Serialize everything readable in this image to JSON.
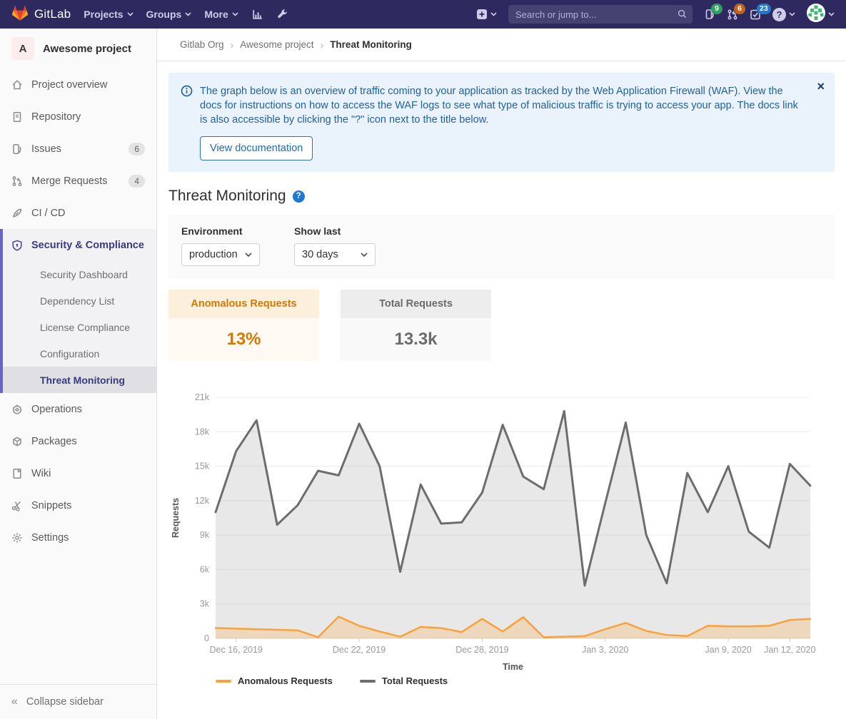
{
  "navbar": {
    "brand": "GitLab",
    "menus": [
      {
        "label": "Projects"
      },
      {
        "label": "Groups"
      },
      {
        "label": "More"
      }
    ],
    "search_placeholder": "Search or jump to...",
    "badges": {
      "issues": "9",
      "merge_requests": "6",
      "todos": "23"
    }
  },
  "icons": {
    "help": "?",
    "close": "×",
    "collapse": "«"
  },
  "sidebar": {
    "project_initial": "A",
    "project_name": "Awesome project",
    "items": [
      {
        "label": "Project overview"
      },
      {
        "label": "Repository"
      },
      {
        "label": "Issues",
        "badge": "6"
      },
      {
        "label": "Merge Requests",
        "badge": "4"
      },
      {
        "label": "CI / CD"
      },
      {
        "label": "Security & Compliance"
      },
      {
        "label": "Operations"
      },
      {
        "label": "Packages"
      },
      {
        "label": "Wiki"
      },
      {
        "label": "Snippets"
      },
      {
        "label": "Settings"
      }
    ],
    "security_subitems": [
      {
        "label": "Security Dashboard"
      },
      {
        "label": "Dependency List"
      },
      {
        "label": "License Compliance"
      },
      {
        "label": "Configuration"
      },
      {
        "label": "Threat Monitoring",
        "active": true
      }
    ],
    "collapse_label": "Collapse sidebar"
  },
  "breadcrumb": {
    "items": [
      "Gitlab Org",
      "Awesome project",
      "Threat Monitoring"
    ]
  },
  "alert": {
    "text": "The graph below is an overview of traffic coming to your application as tracked by the Web Application Firewall (WAF). View the docs for instructions on how to access the WAF logs to see what type of malicious traffic is trying to access your app. The docs link is also accessible by clicking the \"?\" icon next to the title below.",
    "button_label": "View documentation"
  },
  "page": {
    "title": "Threat Monitoring"
  },
  "filters": {
    "environment_label": "Environment",
    "environment_value": "production",
    "show_last_label": "Show last",
    "show_last_value": "30 days"
  },
  "stats": {
    "cards": [
      {
        "label": "Anomalous Requests",
        "value": "13%"
      },
      {
        "label": "Total Requests",
        "value": "13.3k"
      }
    ]
  },
  "colors": {
    "navbar_bg": "#2e2a60",
    "sidebar_accent": "#6666c4",
    "link_blue": "#1f78d1",
    "anomalous_orange": "#f9a23a",
    "total_gray": "#6d6d6d"
  },
  "chart_data": {
    "type": "area",
    "title": "",
    "xlabel": "Time",
    "ylabel": "Requests",
    "ylim": [
      0,
      21000
    ],
    "y_tick_step": 3000,
    "y_ticks": [
      "0",
      "3k",
      "6k",
      "9k",
      "12k",
      "15k",
      "18k",
      "21k"
    ],
    "grid": true,
    "legend_position": "bottom-left",
    "x": [
      "Dec 15, 2019",
      "Dec 16, 2019",
      "Dec 17, 2019",
      "Dec 18, 2019",
      "Dec 19, 2019",
      "Dec 20, 2019",
      "Dec 21, 2019",
      "Dec 22, 2019",
      "Dec 23, 2019",
      "Dec 24, 2019",
      "Dec 25, 2019",
      "Dec 26, 2019",
      "Dec 27, 2019",
      "Dec 28, 2019",
      "Dec 29, 2019",
      "Dec 30, 2019",
      "Dec 31, 2019",
      "Jan 1, 2020",
      "Jan 2, 2020",
      "Jan 3, 2020",
      "Jan 4, 2020",
      "Jan 5, 2020",
      "Jan 6, 2020",
      "Jan 7, 2020",
      "Jan 8, 2020",
      "Jan 9, 2020",
      "Jan 10, 2020",
      "Jan 11, 2020",
      "Jan 12, 2020",
      "Jan 13, 2020"
    ],
    "x_tick_labels": [
      "Dec 16, 2019",
      "Dec 22, 2019",
      "Dec 28, 2019",
      "Jan 3, 2020",
      "Jan 9, 2020",
      "Jan 12, 2020"
    ],
    "x_tick_indices": [
      1,
      7,
      13,
      19,
      25,
      28
    ],
    "series": [
      {
        "name": "Anomalous Requests",
        "color": "#f9a23a",
        "fill": "rgba(250,163,58,0.25)",
        "width": 2.5,
        "values": [
          900,
          850,
          800,
          750,
          700,
          100,
          1900,
          1100,
          600,
          150,
          1000,
          900,
          550,
          1700,
          600,
          1850,
          100,
          150,
          200,
          800,
          1350,
          650,
          300,
          200,
          1100,
          1050,
          1050,
          1100,
          1600,
          1700
        ]
      },
      {
        "name": "Total Requests",
        "color": "#6d6d6d",
        "fill": "rgba(110,110,110,0.16)",
        "width": 3,
        "values": [
          11000,
          16300,
          19000,
          9900,
          11600,
          14600,
          14200,
          18700,
          15000,
          5800,
          13400,
          10000,
          10100,
          12700,
          18600,
          14100,
          13000,
          19800,
          4600,
          11800,
          18800,
          9000,
          4800,
          14400,
          11000,
          15000,
          9300,
          7900,
          15200,
          13300
        ]
      }
    ]
  }
}
